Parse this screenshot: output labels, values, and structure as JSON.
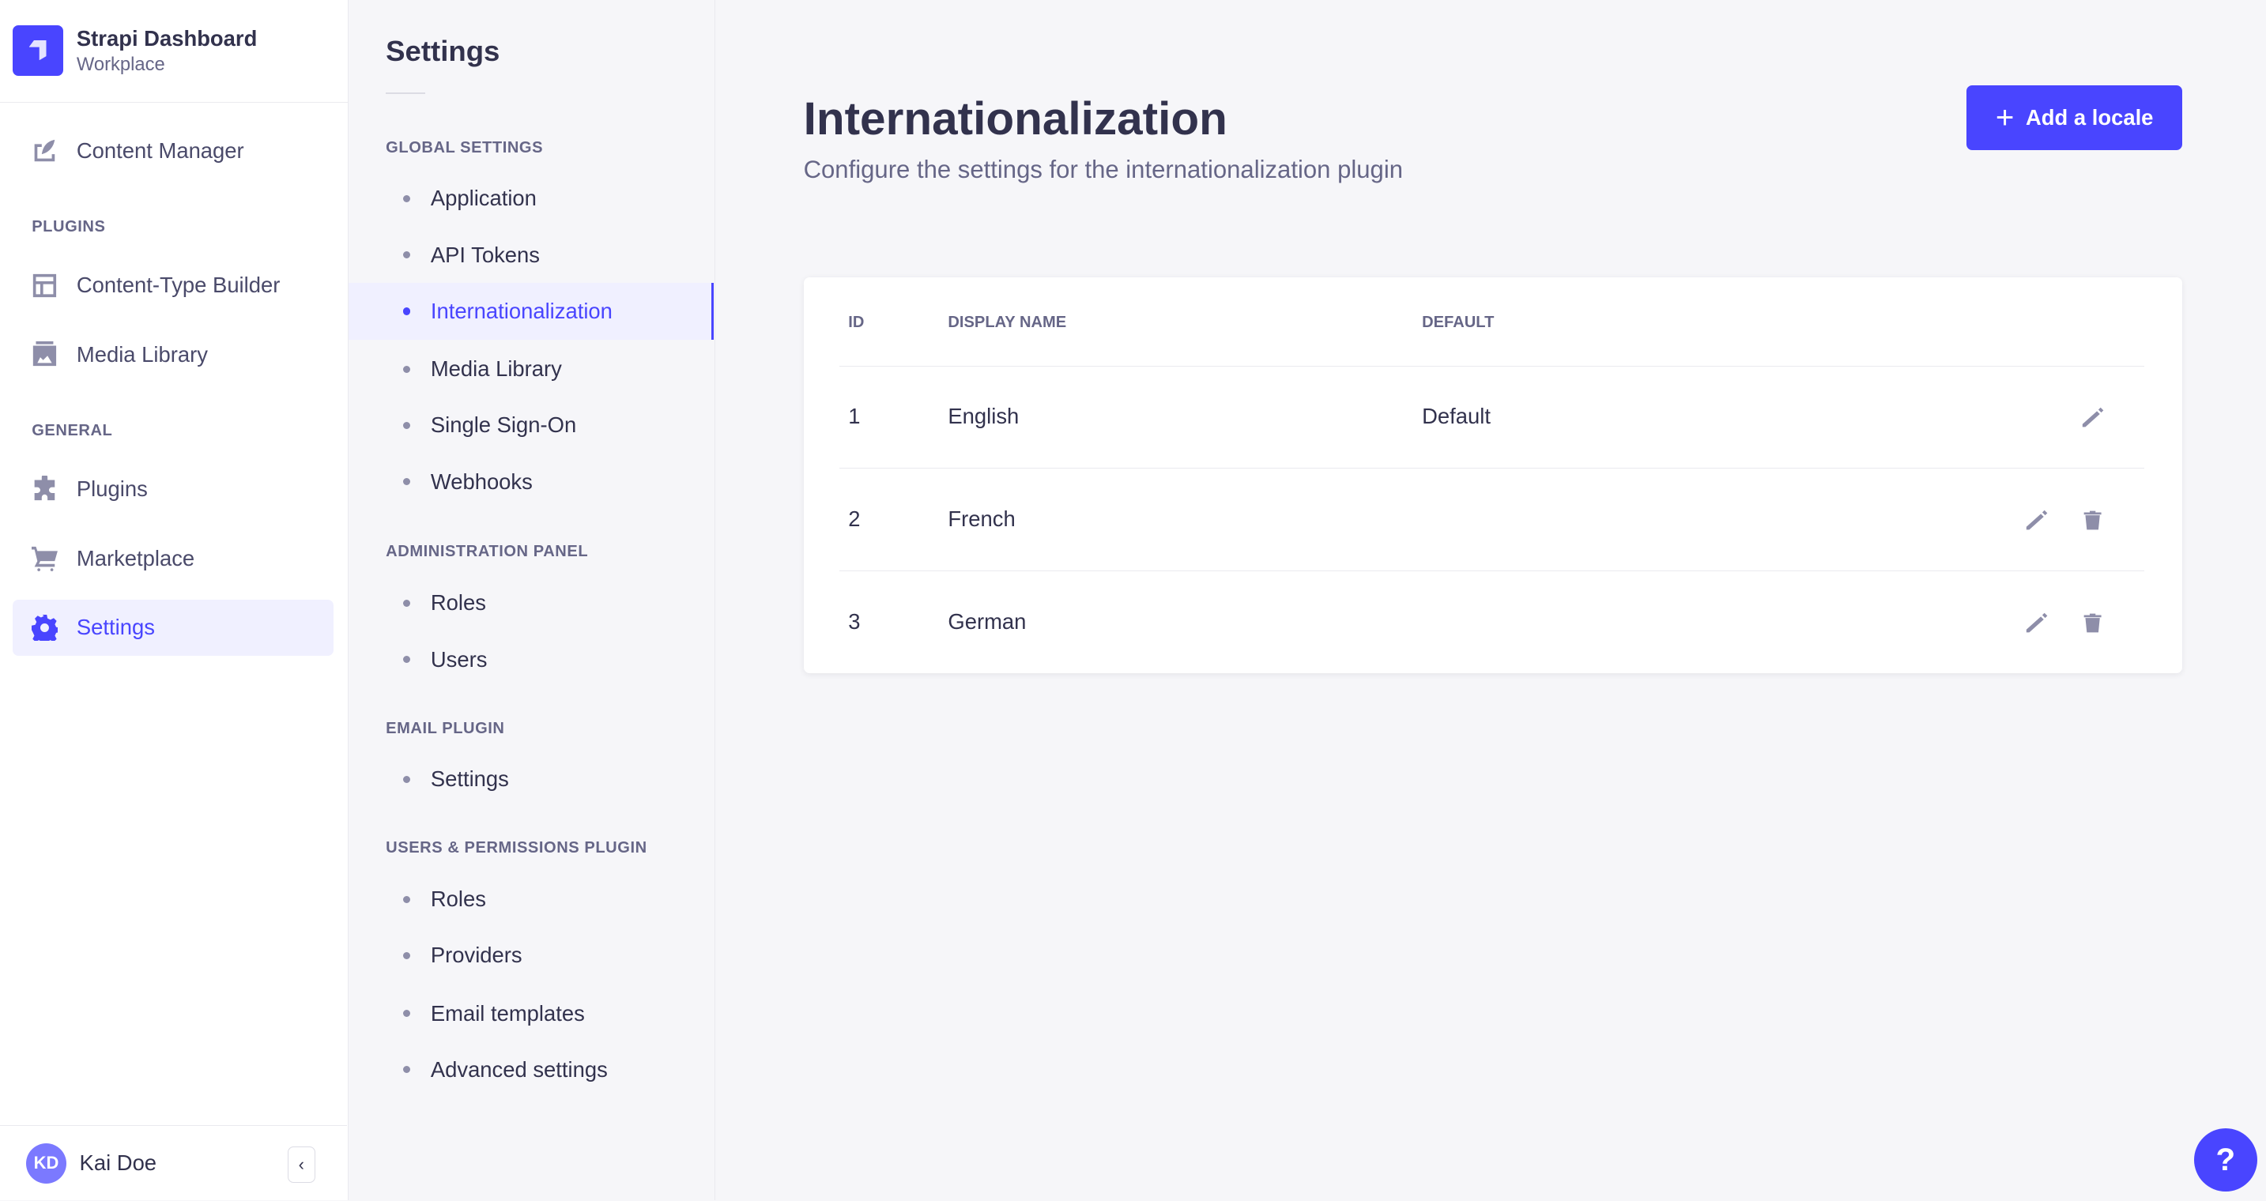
{
  "app": {
    "title": "Strapi Dashboard",
    "workspace": "Workplace"
  },
  "nav": {
    "content_manager": "Content Manager",
    "plugins_label": "PLUGINS",
    "content_type_builder": "Content-Type Builder",
    "media_library": "Media Library",
    "general_label": "GENERAL",
    "plugins": "Plugins",
    "marketplace": "Marketplace",
    "settings": "Settings"
  },
  "user": {
    "initials": "KD",
    "name": "Kai Doe"
  },
  "settings_nav": {
    "title": "Settings",
    "sections": [
      {
        "label": "GLOBAL SETTINGS",
        "items": [
          "Application",
          "API Tokens",
          "Internationalization",
          "Media Library",
          "Single Sign-On",
          "Webhooks"
        ]
      },
      {
        "label": "ADMINISTRATION PANEL",
        "items": [
          "Roles",
          "Users"
        ]
      },
      {
        "label": "EMAIL PLUGIN",
        "items": [
          "Settings"
        ]
      },
      {
        "label": "USERS & PERMISSIONS PLUGIN",
        "items": [
          "Roles",
          "Providers",
          "Email templates",
          "Advanced settings"
        ]
      }
    ],
    "active": "Internationalization"
  },
  "page": {
    "title": "Internationalization",
    "subtitle": "Configure the settings for the internationalization plugin",
    "add_button": "Add a locale"
  },
  "table": {
    "headers": [
      "ID",
      "DISPLAY NAME",
      "DEFAULT"
    ],
    "rows": [
      {
        "id": "1",
        "name": "English",
        "default": "Default"
      },
      {
        "id": "2",
        "name": "French",
        "default": ""
      },
      {
        "id": "3",
        "name": "German",
        "default": ""
      }
    ]
  },
  "help": "?",
  "colors": {
    "primary": "#4945ff",
    "active_bg": "#f0f0ff",
    "text": "#32324d",
    "muted": "#666687"
  }
}
